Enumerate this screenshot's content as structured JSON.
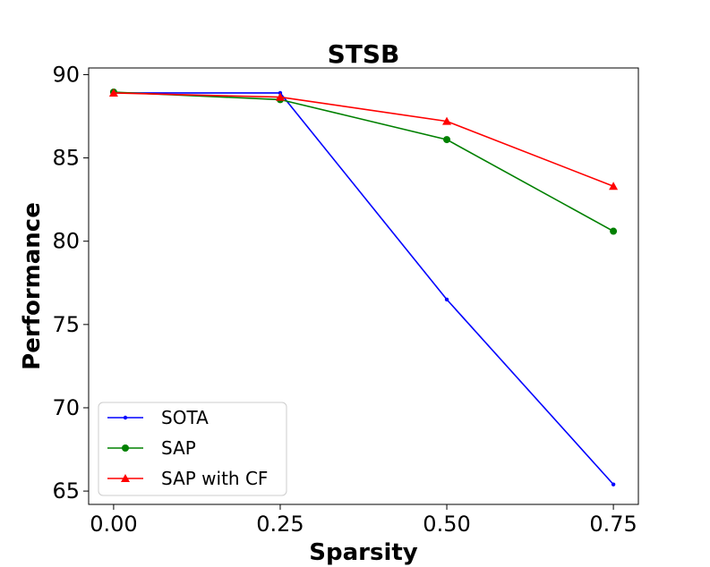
{
  "chart_data": {
    "type": "line",
    "title": "STSB",
    "xlabel": "Sparsity",
    "ylabel": "Performance",
    "x": [
      0.0,
      0.25,
      0.5,
      0.75
    ],
    "x_ticks": [
      0.0,
      0.25,
      0.5,
      0.75
    ],
    "x_tick_labels": [
      "0.00",
      "0.25",
      "0.50",
      "0.75"
    ],
    "y_ticks": [
      65,
      70,
      75,
      80,
      85,
      90
    ],
    "y_tick_labels": [
      "65",
      "70",
      "75",
      "80",
      "85",
      "90"
    ],
    "xlim": [
      -0.0375,
      0.7875
    ],
    "ylim": [
      64.2,
      90.4
    ],
    "grid": false,
    "legend_position": "lower-left",
    "series": [
      {
        "name": "SOTA",
        "values": [
          88.9,
          88.9,
          76.5,
          65.4
        ],
        "color": "#0000ff",
        "marker": "dot"
      },
      {
        "name": "SAP",
        "values": [
          88.95,
          88.5,
          86.1,
          80.6
        ],
        "color": "#008000",
        "marker": "circle"
      },
      {
        "name": "SAP with CF",
        "values": [
          88.9,
          88.65,
          87.2,
          83.3
        ],
        "color": "#ff0000",
        "marker": "triangle"
      }
    ]
  }
}
